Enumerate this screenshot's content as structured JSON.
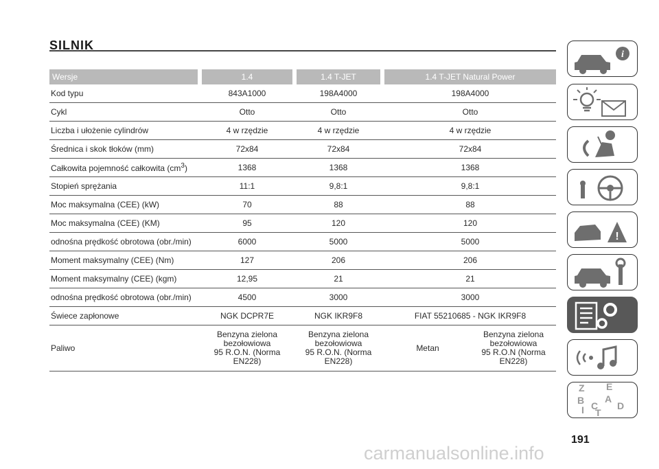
{
  "section_title": "SILNIK",
  "table": {
    "headers": [
      "Wersje",
      "1.4",
      "1.4 T-JET",
      "1.4 T-JET Natural Power"
    ],
    "rows": [
      {
        "label": "Kod typu",
        "values": [
          "843A1000",
          "198A4000",
          "198A4000"
        ]
      },
      {
        "label": "Cykl",
        "values": [
          "Otto",
          "Otto",
          "Otto"
        ]
      },
      {
        "label": "Liczba i ułożenie cylindrów",
        "values": [
          "4 w rzędzie",
          "4 w rzędzie",
          "4 w rzędzie"
        ]
      },
      {
        "label": "Średnica i skok tłoków (mm)",
        "values": [
          "72x84",
          "72x84",
          "72x84"
        ]
      },
      {
        "label": "Całkowita pojemność całkowita (cm",
        "label_sup": "3",
        "label_end": ")",
        "values": [
          "1368",
          "1368",
          "1368"
        ]
      },
      {
        "label": "Stopień sprężania",
        "values": [
          "11:1",
          "9,8:1",
          "9,8:1"
        ]
      },
      {
        "label": "Moc maksymalna (CEE) (kW)",
        "values": [
          "70",
          "88",
          "88"
        ]
      },
      {
        "label": "Moc maksymalna (CEE) (KM)",
        "values": [
          "95",
          "120",
          "120"
        ]
      },
      {
        "label": "odnośna prędkość obrotowa (obr./min)",
        "values": [
          "6000",
          "5000",
          "5000"
        ]
      },
      {
        "label": "Moment maksymalny (CEE) (Nm)",
        "values": [
          "127",
          "206",
          "206"
        ]
      },
      {
        "label": "Moment maksymalny (CEE) (kgm)",
        "values": [
          "12,95",
          "21",
          "21"
        ]
      },
      {
        "label": "odnośna prędkość obrotowa (obr./min)",
        "values": [
          "4500",
          "3000",
          "3000"
        ]
      },
      {
        "label": "Świece zapłonowe",
        "values": [
          "NGK DCPR7E",
          "NGK IKR9F8",
          "FIAT 55210685 - NGK IKR9F8"
        ]
      }
    ],
    "fuel_row": {
      "label": "Paliwo",
      "v14": [
        "Benzyna zielona",
        "bezołowiowa",
        "95 R.O.N. (Norma",
        "EN228)"
      ],
      "vtjet": [
        "Benzyna zielona",
        "bezołowiowa",
        "95 R.O.N. (Norma",
        "EN228)"
      ],
      "vnp_a": "Metan",
      "vnp_b": [
        "Benzyna zielona",
        "bezołowiowa",
        "95 R.O.N (Norma",
        "EN228)"
      ]
    }
  },
  "sidebar": {
    "tabs": [
      {
        "name": "tab-dashboard-info",
        "icon": "car-info-icon"
      },
      {
        "name": "tab-lights-messages",
        "icon": "warning-light-message-icon"
      },
      {
        "name": "tab-safety",
        "icon": "airbag-person-icon"
      },
      {
        "name": "tab-starting-driving",
        "icon": "key-steering-wheel-icon"
      },
      {
        "name": "tab-emergency",
        "icon": "car-crash-warning-icon"
      },
      {
        "name": "tab-maintenance",
        "icon": "car-wrench-icon"
      },
      {
        "name": "tab-technical-data",
        "icon": "document-gears-icon",
        "active": true
      },
      {
        "name": "tab-multimedia",
        "icon": "signal-music-icon"
      },
      {
        "name": "tab-index",
        "icon": "alphabet-letters-icon",
        "letters": [
          "Z",
          "E",
          "B",
          "A",
          "I",
          "C",
          "T",
          "D"
        ]
      }
    ]
  },
  "page_number": "191",
  "watermark": "carmanualsonline.info",
  "colors": {
    "header_bg": "#b9b9b9",
    "active_tab": "#585858",
    "rule": "#444444"
  }
}
